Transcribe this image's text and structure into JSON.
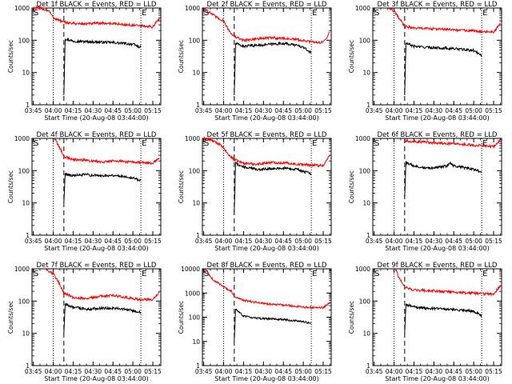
{
  "figure": {
    "ylabel": "Counts/sec",
    "xlabel": "Start Time (20-Aug-08 03:44:00)",
    "x_ticks": [
      "03:45",
      "04:00",
      "04:15",
      "04:30",
      "04:45",
      "05:00",
      "05:15"
    ],
    "y_ticks": [
      "1",
      "10",
      "100",
      "1000"
    ],
    "y_ticks_ext": [
      "1",
      "10",
      "100",
      "1000",
      "10000"
    ],
    "marker_S": "S",
    "marker_E": "E",
    "colors": {
      "events": "#000000",
      "lld": "#ff0000",
      "axes": "#000000"
    }
  },
  "chart_data": [
    {
      "type": "line",
      "title": "Det 1f BLACK = Events, RED = LLD",
      "xlabel": "Start Time (20-Aug-08 03:44:00)",
      "ylabel": "Counts/sec",
      "log_y": true,
      "ylim": [
        1,
        1000
      ],
      "x_range": [
        "03:44",
        "05:21"
      ],
      "markers": {
        "dotted": [
          "04:00",
          "05:06"
        ],
        "dashed": "04:08"
      },
      "series": [
        {
          "name": "Events",
          "color": "#000000",
          "x": [
            "04:08",
            "04:09",
            "04:15",
            "04:25",
            "04:35",
            "04:45",
            "04:55",
            "05:00",
            "05:06"
          ],
          "y": [
            2,
            110,
            95,
            90,
            88,
            85,
            78,
            75,
            60
          ]
        },
        {
          "name": "LLD",
          "color": "#ff0000",
          "x": [
            "03:45",
            "03:50",
            "03:57",
            "04:00",
            "04:08",
            "04:15",
            "04:25",
            "04:35",
            "04:45",
            "04:55",
            "05:05",
            "05:15",
            "05:20"
          ],
          "y": [
            1000,
            1000,
            800,
            500,
            360,
            330,
            320,
            340,
            330,
            300,
            280,
            260,
            480
          ]
        }
      ]
    },
    {
      "type": "line",
      "title": "Det 2f BLACK = Events, RED = LLD",
      "xlabel": "Start Time (20-Aug-08 03:44:00)",
      "ylabel": "Counts/sec",
      "log_y": true,
      "ylim": [
        1,
        1000
      ],
      "x_range": [
        "03:44",
        "05:21"
      ],
      "markers": {
        "dotted": [
          "04:00",
          "05:06"
        ],
        "dashed": "04:08"
      },
      "series": [
        {
          "name": "Events",
          "color": "#000000",
          "x": [
            "04:08",
            "04:09",
            "04:15",
            "04:25",
            "04:35",
            "04:45",
            "04:55",
            "05:00",
            "05:06"
          ],
          "y": [
            2,
            80,
            65,
            70,
            75,
            80,
            70,
            60,
            40
          ]
        },
        {
          "name": "LLD",
          "color": "#ff0000",
          "x": [
            "03:45",
            "03:50",
            "03:55",
            "04:00",
            "04:04",
            "04:08",
            "04:15",
            "04:25",
            "04:35",
            "04:45",
            "04:55",
            "05:05",
            "05:15",
            "05:20"
          ],
          "y": [
            1000,
            700,
            500,
            400,
            200,
            130,
            100,
            110,
            120,
            115,
            105,
            90,
            85,
            180
          ]
        }
      ]
    },
    {
      "type": "line",
      "title": "Det 3f BLACK = Events, RED = LLD",
      "xlabel": "Start Time (20-Aug-08 03:44:00)",
      "ylabel": "Counts/sec",
      "log_y": true,
      "ylim": [
        1,
        1000
      ],
      "x_range": [
        "03:44",
        "05:21"
      ],
      "markers": {
        "dotted": [
          "04:00",
          "05:06"
        ],
        "dashed": "04:08"
      },
      "series": [
        {
          "name": "Events",
          "color": "#000000",
          "x": [
            "04:08",
            "04:09",
            "04:15",
            "04:25",
            "04:35",
            "04:45",
            "04:55",
            "05:00",
            "05:06"
          ],
          "y": [
            2,
            80,
            65,
            60,
            58,
            55,
            50,
            48,
            35
          ]
        },
        {
          "name": "LLD",
          "color": "#ff0000",
          "x": [
            "03:56",
            "04:00",
            "04:05",
            "04:08",
            "04:15",
            "04:25",
            "04:35",
            "04:45",
            "04:55",
            "05:05",
            "05:15",
            "05:20"
          ],
          "y": [
            1000,
            800,
            400,
            270,
            240,
            230,
            220,
            210,
            200,
            190,
            180,
            320
          ]
        }
      ]
    },
    {
      "type": "line",
      "title": "Det 4f BLACK = Events, RED = LLD",
      "xlabel": "Start Time (20-Aug-08 03:44:00)",
      "ylabel": "Counts/sec",
      "log_y": true,
      "ylim": [
        1,
        1000
      ],
      "x_range": [
        "03:44",
        "05:21"
      ],
      "markers": {
        "dotted": [
          "04:00",
          "05:06"
        ],
        "dashed": "04:08"
      },
      "series": [
        {
          "name": "Events",
          "color": "#000000",
          "x": [
            "04:08",
            "04:09",
            "04:15",
            "04:25",
            "04:35",
            "04:45",
            "04:55",
            "05:00",
            "05:06"
          ],
          "y": [
            10,
            80,
            70,
            75,
            70,
            72,
            65,
            60,
            50
          ]
        },
        {
          "name": "LLD",
          "color": "#ff0000",
          "x": [
            "04:01",
            "04:04",
            "04:08",
            "04:15",
            "04:25",
            "04:35",
            "04:45",
            "04:55",
            "05:05",
            "05:15",
            "05:20"
          ],
          "y": [
            1000,
            600,
            280,
            220,
            210,
            190,
            200,
            190,
            180,
            170,
            250
          ]
        }
      ]
    },
    {
      "type": "line",
      "title": "Det 5f BLACK = Events, RED = LLD",
      "xlabel": "Start Time (20-Aug-08 03:44:00)",
      "ylabel": "Counts/sec",
      "log_y": true,
      "ylim": [
        1,
        1000
      ],
      "x_range": [
        "03:44",
        "05:21"
      ],
      "markers": {
        "dotted": [
          "04:00",
          "05:06"
        ],
        "dashed": "04:08"
      },
      "series": [
        {
          "name": "Events",
          "color": "#000000",
          "x": [
            "04:08",
            "04:09",
            "04:15",
            "04:25",
            "04:35",
            "04:45",
            "04:55",
            "05:00",
            "05:06"
          ],
          "y": [
            5,
            170,
            130,
            110,
            115,
            120,
            110,
            95,
            80
          ]
        },
        {
          "name": "LLD",
          "color": "#ff0000",
          "x": [
            "03:45",
            "03:50",
            "03:56",
            "04:00",
            "04:04",
            "04:08",
            "04:15",
            "04:25",
            "04:35",
            "04:45",
            "04:55",
            "05:05",
            "05:15",
            "05:20"
          ],
          "y": [
            1000,
            900,
            700,
            500,
            300,
            220,
            170,
            160,
            180,
            175,
            160,
            150,
            145,
            300
          ]
        }
      ]
    },
    {
      "type": "line",
      "title": "Det 6f BLACK = Events, RED = LLD",
      "xlabel": "Start Time (20-Aug-08 03:44:00)",
      "ylabel": "Counts/sec",
      "log_y": true,
      "ylim": [
        1,
        1000
      ],
      "x_range": [
        "03:44",
        "05:21"
      ],
      "markers": {
        "dotted": [
          "04:00",
          "05:06"
        ],
        "dashed": "04:08"
      },
      "series": [
        {
          "name": "Events",
          "color": "#000000",
          "x": [
            "04:08",
            "04:09",
            "04:15",
            "04:25",
            "04:35",
            "04:40",
            "04:42",
            "04:45",
            "04:55",
            "05:00",
            "05:06"
          ],
          "y": [
            15,
            180,
            140,
            120,
            130,
            140,
            180,
            140,
            120,
            110,
            90
          ]
        },
        {
          "name": "LLD",
          "color": "#ff0000",
          "x": [
            "04:08",
            "04:15",
            "04:25",
            "04:35",
            "04:45",
            "04:55",
            "05:05",
            "05:15",
            "05:20"
          ],
          "y": [
            820,
            800,
            750,
            700,
            680,
            640,
            600,
            560,
            900
          ]
        }
      ]
    },
    {
      "type": "line",
      "title": "Det 7f BLACK = Events, RED = LLD",
      "xlabel": "Start Time (20-Aug-08 03:44:00)",
      "ylabel": "Counts/sec",
      "log_y": true,
      "ylim": [
        1,
        1000
      ],
      "x_range": [
        "03:44",
        "05:21"
      ],
      "markers": {
        "dotted": [
          "04:00",
          "05:06"
        ],
        "dashed": "04:08"
      },
      "series": [
        {
          "name": "Events",
          "color": "#000000",
          "x": [
            "04:08",
            "04:09",
            "04:15",
            "04:25",
            "04:35",
            "04:45",
            "04:55",
            "05:00",
            "05:06"
          ],
          "y": [
            10,
            80,
            65,
            55,
            60,
            60,
            55,
            50,
            45
          ]
        },
        {
          "name": "LLD",
          "color": "#ff0000",
          "x": [
            "03:54",
            "04:00",
            "04:04",
            "04:08",
            "04:15",
            "04:25",
            "04:35",
            "04:45",
            "04:55",
            "05:05",
            "05:15",
            "05:20"
          ],
          "y": [
            1000,
            700,
            400,
            180,
            130,
            120,
            140,
            150,
            130,
            110,
            110,
            180
          ]
        }
      ]
    },
    {
      "type": "line",
      "title": "Det 8f BLACK = Events, RED = LLD",
      "xlabel": "Start Time (20-Aug-08 03:44:00)",
      "ylabel": "Counts/sec",
      "log_y": true,
      "ylim": [
        1,
        10000
      ],
      "x_range": [
        "03:44",
        "05:21"
      ],
      "markers": {
        "dotted": [
          "04:00",
          "05:06"
        ],
        "dashed": "04:08"
      },
      "series": [
        {
          "name": "Events",
          "color": "#000000",
          "x": [
            "04:08",
            "04:09",
            "04:15",
            "04:25",
            "04:35",
            "04:45",
            "04:55",
            "05:00",
            "05:06"
          ],
          "y": [
            10,
            220,
            110,
            90,
            85,
            80,
            70,
            65,
            55
          ]
        },
        {
          "name": "LLD",
          "color": "#ff0000",
          "x": [
            "03:46",
            "03:52",
            "03:58",
            "04:02",
            "04:06",
            "04:08",
            "04:15",
            "04:25",
            "04:35",
            "04:45",
            "04:55",
            "05:05",
            "05:15",
            "05:20"
          ],
          "y": [
            10000,
            3500,
            2200,
            1500,
            1200,
            700,
            500,
            400,
            350,
            320,
            280,
            250,
            250,
            400
          ]
        }
      ]
    },
    {
      "type": "line",
      "title": "Det 9f BLACK = Events, RED = LLD",
      "xlabel": "Start Time (20-Aug-08 03:44:00)",
      "ylabel": "Counts/sec",
      "log_y": true,
      "ylim": [
        1,
        1000
      ],
      "x_range": [
        "03:44",
        "05:21"
      ],
      "markers": {
        "dotted": [
          "04:00",
          "05:06"
        ],
        "dashed": "04:08"
      },
      "series": [
        {
          "name": "Events",
          "color": "#000000",
          "x": [
            "04:08",
            "04:09",
            "04:15",
            "04:25",
            "04:35",
            "04:45",
            "04:55",
            "05:00",
            "05:06"
          ],
          "y": [
            10,
            80,
            65,
            60,
            58,
            55,
            50,
            48,
            35
          ]
        },
        {
          "name": "LLD",
          "color": "#ff0000",
          "x": [
            "04:01",
            "04:04",
            "04:08",
            "04:15",
            "04:25",
            "04:35",
            "04:45",
            "04:55",
            "05:05",
            "05:15",
            "05:20"
          ],
          "y": [
            1000,
            500,
            270,
            220,
            210,
            200,
            190,
            180,
            170,
            165,
            300
          ]
        }
      ]
    }
  ]
}
